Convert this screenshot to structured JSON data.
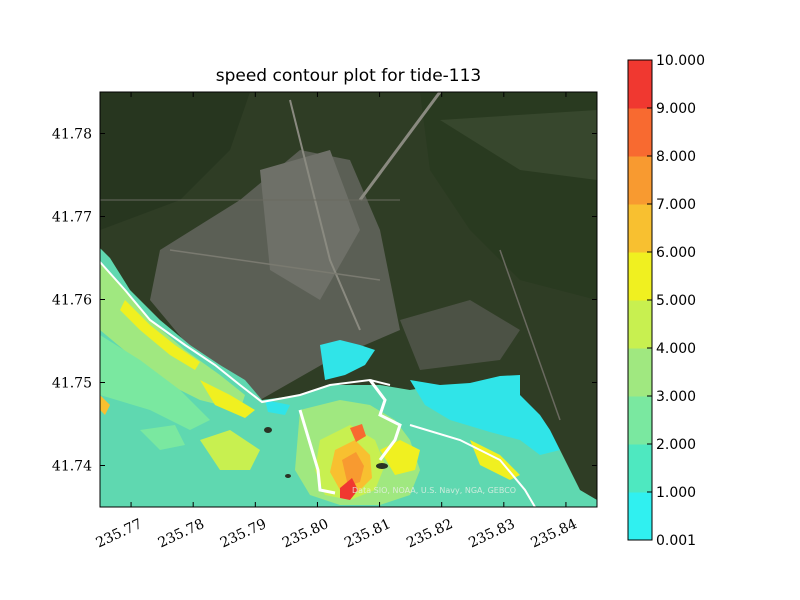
{
  "chart_data": {
    "type": "heatmap",
    "title": "speed contour plot for tide-113",
    "xlabel": "",
    "ylabel": "",
    "xlim": [
      235.765,
      235.845
    ],
    "ylim": [
      41.735,
      41.785
    ],
    "x_ticks": [
      235.77,
      235.78,
      235.79,
      235.8,
      235.81,
      235.82,
      235.83,
      235.84
    ],
    "x_tick_labels": [
      "235.77",
      "235.78",
      "235.79",
      "235.80",
      "235.81",
      "235.82",
      "235.83",
      "235.84"
    ],
    "y_ticks": [
      41.74,
      41.75,
      41.76,
      41.77,
      41.78
    ],
    "y_tick_labels": [
      "41.74",
      "41.75",
      "41.76",
      "41.77",
      "41.78"
    ],
    "background": "satellite imagery",
    "colorbar": {
      "levels": [
        0.001,
        1.0,
        2.0,
        3.0,
        4.0,
        5.0,
        6.0,
        7.0,
        8.0,
        9.0,
        10.0
      ],
      "labels": [
        "0.001",
        "1.000",
        "2.000",
        "3.000",
        "4.000",
        "5.000",
        "6.000",
        "7.000",
        "8.000",
        "9.000",
        "10.000"
      ],
      "colors": [
        "#30f0f0",
        "#4ee8c0",
        "#7ae8a0",
        "#a0e880",
        "#c8f050",
        "#f0f020",
        "#f8c030",
        "#f89a30",
        "#f86a30",
        "#f03830"
      ]
    },
    "attribution": "Data SIO, NOAA, U.S. Navy, NGA, GEBCO"
  }
}
